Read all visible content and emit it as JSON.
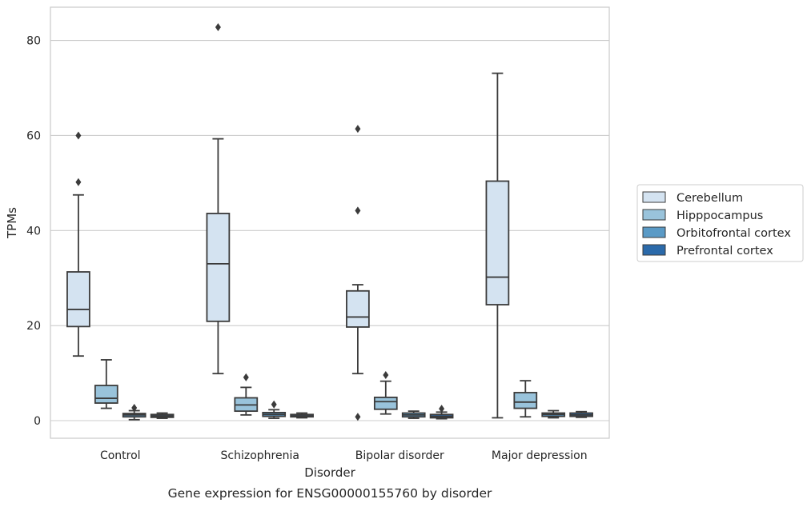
{
  "chart_data": {
    "type": "box",
    "caption": "Gene expression for ENSG00000155760 by disorder",
    "xlabel": "Disorder",
    "ylabel": "TPMs",
    "ylim": [
      -3.7,
      87
    ],
    "yticks": [
      0,
      20,
      40,
      60,
      80
    ],
    "grid": true,
    "legend_position": "right",
    "categories": [
      "Control",
      "Schizophrenia",
      "Bipolar disorder",
      "Major depression"
    ],
    "series": [
      {
        "name": "Cerebellum",
        "color": "#d4e3f1",
        "boxes": [
          {
            "whisker_low": 13.6,
            "q1": 19.8,
            "median": 23.4,
            "q3": 31.3,
            "whisker_high": 47.5,
            "outliers": [
              50.2,
              60.0
            ]
          },
          {
            "whisker_low": 9.9,
            "q1": 20.9,
            "median": 33.0,
            "q3": 43.6,
            "whisker_high": 59.3,
            "outliers": [
              82.8
            ]
          },
          {
            "whisker_low": 9.9,
            "q1": 19.7,
            "median": 21.8,
            "q3": 27.3,
            "whisker_high": 28.6,
            "outliers": [
              0.8,
              44.2,
              61.4
            ]
          },
          {
            "whisker_low": 0.6,
            "q1": 24.4,
            "median": 30.2,
            "q3": 50.4,
            "whisker_high": 73.1,
            "outliers": []
          }
        ]
      },
      {
        "name": "Hipppocampus",
        "color": "#99c3db",
        "boxes": [
          {
            "whisker_low": 2.6,
            "q1": 3.7,
            "median": 4.7,
            "q3": 7.4,
            "whisker_high": 12.8,
            "outliers": []
          },
          {
            "whisker_low": 1.2,
            "q1": 2.0,
            "median": 3.3,
            "q3": 4.8,
            "whisker_high": 7.0,
            "outliers": [
              9.1
            ]
          },
          {
            "whisker_low": 1.4,
            "q1": 2.4,
            "median": 4.0,
            "q3": 4.9,
            "whisker_high": 8.3,
            "outliers": [
              9.6
            ]
          },
          {
            "whisker_low": 0.8,
            "q1": 2.6,
            "median": 3.9,
            "q3": 5.9,
            "whisker_high": 8.4,
            "outliers": []
          }
        ]
      },
      {
        "name": "Orbitofrontal cortex",
        "color": "#5a9ac6",
        "boxes": [
          {
            "whisker_low": 0.2,
            "q1": 0.8,
            "median": 1.2,
            "q3": 1.5,
            "whisker_high": 2.1,
            "outliers": [
              2.7
            ]
          },
          {
            "whisker_low": 0.5,
            "q1": 0.9,
            "median": 1.3,
            "q3": 1.7,
            "whisker_high": 2.3,
            "outliers": [
              3.4
            ]
          },
          {
            "whisker_low": 0.5,
            "q1": 0.8,
            "median": 1.2,
            "q3": 1.6,
            "whisker_high": 2.0,
            "outliers": []
          },
          {
            "whisker_low": 0.6,
            "q1": 0.9,
            "median": 1.3,
            "q3": 1.6,
            "whisker_high": 2.1,
            "outliers": []
          }
        ]
      },
      {
        "name": "Prefrontal cortex",
        "color": "#2b6aaa",
        "boxes": [
          {
            "whisker_low": 0.5,
            "q1": 0.7,
            "median": 1.0,
            "q3": 1.3,
            "whisker_high": 1.6,
            "outliers": []
          },
          {
            "whisker_low": 0.6,
            "q1": 0.8,
            "median": 1.0,
            "q3": 1.3,
            "whisker_high": 1.6,
            "outliers": []
          },
          {
            "whisker_low": 0.4,
            "q1": 0.6,
            "median": 0.9,
            "q3": 1.3,
            "whisker_high": 1.8,
            "outliers": [
              2.5
            ]
          },
          {
            "whisker_low": 0.7,
            "q1": 0.9,
            "median": 1.2,
            "q3": 1.6,
            "whisker_high": 1.9,
            "outliers": []
          }
        ]
      }
    ]
  }
}
